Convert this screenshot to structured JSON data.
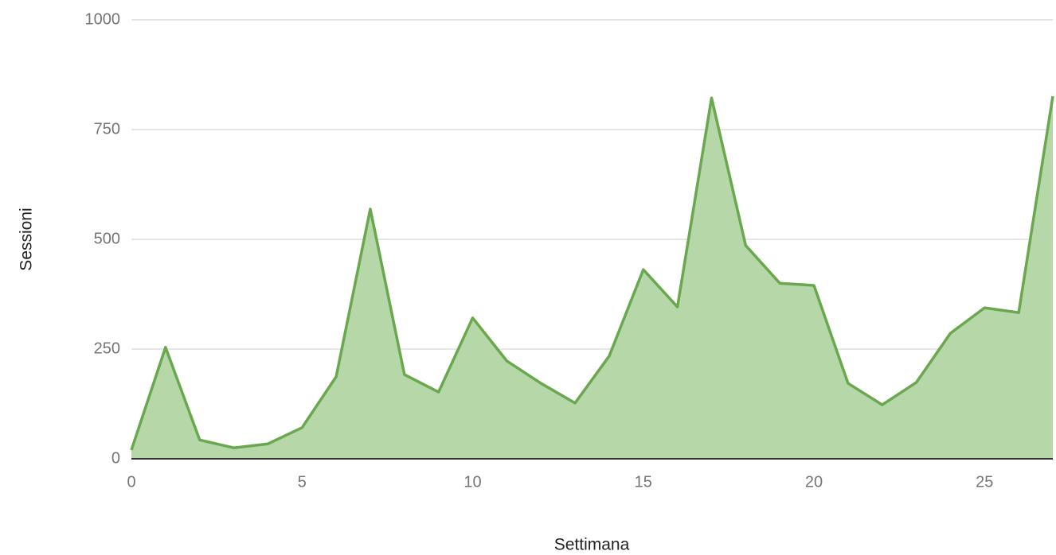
{
  "chart_data": {
    "type": "area",
    "x": [
      0,
      1,
      2,
      3,
      4,
      5,
      6,
      7,
      8,
      9,
      10,
      11,
      12,
      13,
      14,
      15,
      16,
      17,
      18,
      19,
      20,
      21,
      22,
      23,
      24,
      25,
      26,
      27
    ],
    "series": [
      {
        "name": "Sessioni",
        "color": "#6aa84f",
        "fill": "#b6d7a8",
        "values": [
          20,
          254,
          43,
          25,
          34,
          71,
          187,
          569,
          192,
          152,
          321,
          223,
          172,
          127,
          234,
          431,
          346,
          822,
          486,
          400,
          395,
          172,
          123,
          174,
          286,
          344,
          333,
          826
        ]
      }
    ],
    "xlabel": "Settimana",
    "ylabel": "Sessioni",
    "xlim": [
      0,
      27
    ],
    "xticks": [
      0,
      5,
      10,
      15,
      20,
      25
    ],
    "ylim": [
      0,
      1000
    ],
    "yticks": [
      0,
      250,
      500,
      750,
      1000
    ],
    "grid": true
  }
}
